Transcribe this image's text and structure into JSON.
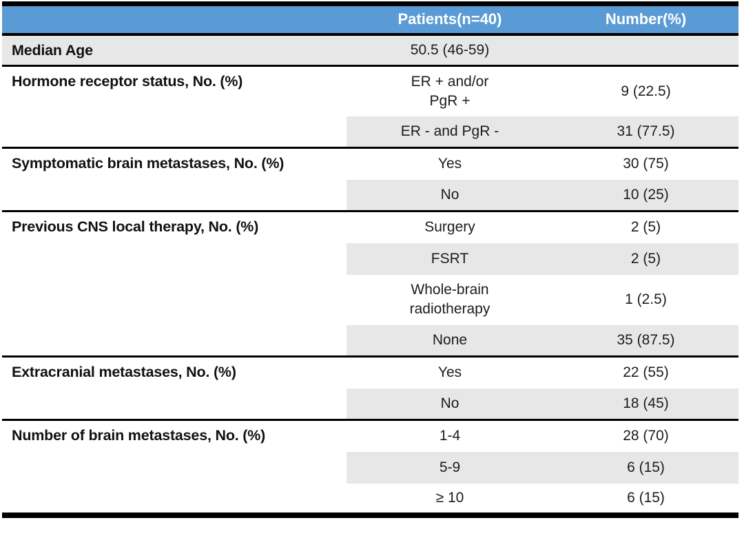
{
  "colors": {
    "header_bg": "#5b9bd5",
    "header_text": "#ffffff",
    "row_shade": "#e8e7e7",
    "rule": "#000000"
  },
  "table": {
    "header": {
      "patients": "Patients(n=40)",
      "number": "Number(%)"
    },
    "sections": [
      {
        "label": "Median Age",
        "full_shade": true,
        "rows": [
          {
            "patients": "50.5 (46-59)",
            "number": "",
            "shaded": true,
            "lines": 1
          }
        ]
      },
      {
        "label": "Hormone receptor status, No. (%)",
        "full_shade": false,
        "rows": [
          {
            "patients": "ER + and/or\nPgR +",
            "number": "9 (22.5)",
            "shaded": false,
            "lines": 2
          },
          {
            "patients": "ER - and PgR -",
            "number": "31 (77.5)",
            "shaded": true,
            "lines": 1
          }
        ]
      },
      {
        "label": "Symptomatic brain metastases, No. (%)",
        "full_shade": false,
        "rows": [
          {
            "patients": "Yes",
            "number": "30 (75)",
            "shaded": false,
            "lines": 1
          },
          {
            "patients": "No",
            "number": "10 (25)",
            "shaded": true,
            "lines": 1
          }
        ]
      },
      {
        "label": "Previous CNS local therapy, No. (%)",
        "full_shade": false,
        "rows": [
          {
            "patients": "Surgery",
            "number": "2 (5)",
            "shaded": false,
            "lines": 1
          },
          {
            "patients": "FSRT",
            "number": "2 (5)",
            "shaded": true,
            "lines": 1
          },
          {
            "patients": "Whole-brain\nradiotherapy",
            "number": "1 (2.5)",
            "shaded": false,
            "lines": 2
          },
          {
            "patients": "None",
            "number": "35 (87.5)",
            "shaded": true,
            "lines": 1
          }
        ]
      },
      {
        "label": "Extracranial metastases, No. (%)",
        "full_shade": false,
        "rows": [
          {
            "patients": "Yes",
            "number": "22 (55)",
            "shaded": false,
            "lines": 1
          },
          {
            "patients": "No",
            "number": "18 (45)",
            "shaded": true,
            "lines": 1
          }
        ]
      },
      {
        "label": "Number of brain metastases, No. (%)",
        "full_shade": false,
        "rows": [
          {
            "patients": "1-4",
            "number": "28 (70)",
            "shaded": false,
            "lines": 1
          },
          {
            "patients": "5-9",
            "number": "6 (15)",
            "shaded": true,
            "lines": 1
          },
          {
            "patients": "≥ 10",
            "number": "6 (15)",
            "shaded": false,
            "lines": 1
          }
        ]
      }
    ]
  }
}
